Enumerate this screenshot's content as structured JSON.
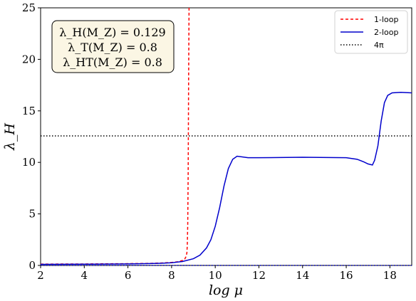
{
  "chart_data": {
    "type": "line",
    "title": "",
    "xlabel": "log μ",
    "ylabel": "λ_H",
    "xlim": [
      2,
      19
    ],
    "ylim": [
      0,
      25
    ],
    "xticks": [
      2,
      4,
      6,
      8,
      10,
      12,
      14,
      16,
      18
    ],
    "yticks": [
      0,
      5,
      10,
      15,
      20,
      25
    ],
    "grid": false,
    "legend_position": "top-right",
    "annotation_lines": [
      "λ_H(M_Z) = 0.129",
      "λ_T(M_Z) = 0.8",
      "λ_HT(M_Z) = 0.8"
    ],
    "series": [
      {
        "name": "1-loop",
        "style": "dashed",
        "color": "#ff0000",
        "x": [
          2,
          4,
          6,
          7,
          7.5,
          8,
          8.3,
          8.5,
          8.6,
          8.65,
          8.7,
          8.72,
          8.74,
          8.76,
          8.78,
          8.8
        ],
        "y": [
          0.13,
          0.14,
          0.17,
          0.2,
          0.23,
          0.29,
          0.36,
          0.48,
          0.62,
          0.8,
          1.2,
          2.0,
          4.0,
          9.0,
          18.0,
          25.0
        ]
      },
      {
        "name": "2-loop",
        "style": "solid",
        "color": "#0000cc",
        "x": [
          2,
          4,
          6,
          7,
          7.5,
          8,
          8.5,
          9,
          9.3,
          9.6,
          9.8,
          10,
          10.2,
          10.4,
          10.6,
          10.8,
          11,
          11.5,
          12,
          14,
          16,
          16.5,
          16.8,
          17,
          17.2,
          17.3,
          17.45,
          17.6,
          17.75,
          17.9,
          18.1,
          18.5,
          19
        ],
        "y": [
          0.1,
          0.12,
          0.15,
          0.18,
          0.21,
          0.26,
          0.38,
          0.65,
          1.0,
          1.7,
          2.5,
          3.8,
          5.6,
          7.7,
          9.4,
          10.3,
          10.6,
          10.45,
          10.45,
          10.5,
          10.45,
          10.3,
          10.05,
          9.85,
          9.75,
          10.2,
          11.6,
          14.0,
          15.8,
          16.5,
          16.75,
          16.8,
          16.75
        ]
      },
      {
        "name": "4π",
        "style": "dotted",
        "color": "#000000",
        "x": [
          2,
          19
        ],
        "y": [
          12.566,
          12.566
        ]
      },
      {
        "name": "",
        "style": "dotted",
        "color": "#0000cc",
        "x": [
          2,
          19
        ],
        "y": [
          0.0,
          0.0
        ]
      }
    ]
  }
}
